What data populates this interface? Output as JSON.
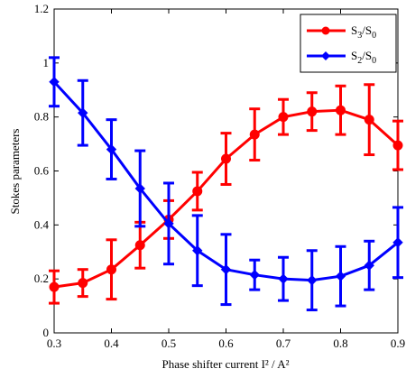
{
  "chart_data": {
    "type": "line",
    "title": "",
    "xlabel": "Phase shifter current I² / A²",
    "ylabel": "Stokes parameters",
    "xlim": [
      0.3,
      0.9
    ],
    "ylim": [
      0,
      1.2
    ],
    "x_ticks": [
      0.3,
      0.4,
      0.5,
      0.6,
      0.7,
      0.8,
      0.9
    ],
    "y_ticks": [
      0,
      0.2,
      0.4,
      0.6,
      0.8,
      1.0,
      1.2
    ],
    "x_tick_labels": [
      "0.3",
      "0.4",
      "0.5",
      "0.6",
      "0.7",
      "0.8",
      "0.9"
    ],
    "y_tick_labels": [
      "0",
      "0.2",
      "0.4",
      "0.6",
      "0.8",
      "1",
      "1.2"
    ],
    "grid": false,
    "legend_position": "top-right",
    "series": [
      {
        "name": "S3/S0",
        "label_main": "S",
        "label_sub1": "3",
        "label_mid": "/S",
        "label_sub2": "0",
        "color": "#ff0000",
        "marker": "circle",
        "x": [
          0.3,
          0.35,
          0.4,
          0.45,
          0.5,
          0.55,
          0.6,
          0.65,
          0.7,
          0.75,
          0.8,
          0.85,
          0.9
        ],
        "y": [
          0.17,
          0.185,
          0.235,
          0.325,
          0.42,
          0.525,
          0.645,
          0.735,
          0.8,
          0.82,
          0.825,
          0.79,
          0.695
        ],
        "err": [
          0.06,
          0.05,
          0.11,
          0.085,
          0.07,
          0.07,
          0.095,
          0.095,
          0.065,
          0.07,
          0.09,
          0.13,
          0.09
        ]
      },
      {
        "name": "S2/S0",
        "label_main": "S",
        "label_sub1": "2",
        "label_mid": "/S",
        "label_sub2": "0",
        "color": "#0000ff",
        "marker": "diamond",
        "x": [
          0.3,
          0.35,
          0.4,
          0.45,
          0.5,
          0.55,
          0.6,
          0.65,
          0.7,
          0.75,
          0.8,
          0.85,
          0.9
        ],
        "y": [
          0.93,
          0.815,
          0.68,
          0.535,
          0.405,
          0.305,
          0.235,
          0.215,
          0.2,
          0.195,
          0.21,
          0.25,
          0.335
        ],
        "err": [
          0.09,
          0.12,
          0.11,
          0.14,
          0.15,
          0.13,
          0.13,
          0.055,
          0.08,
          0.11,
          0.11,
          0.09,
          0.13
        ]
      }
    ]
  }
}
